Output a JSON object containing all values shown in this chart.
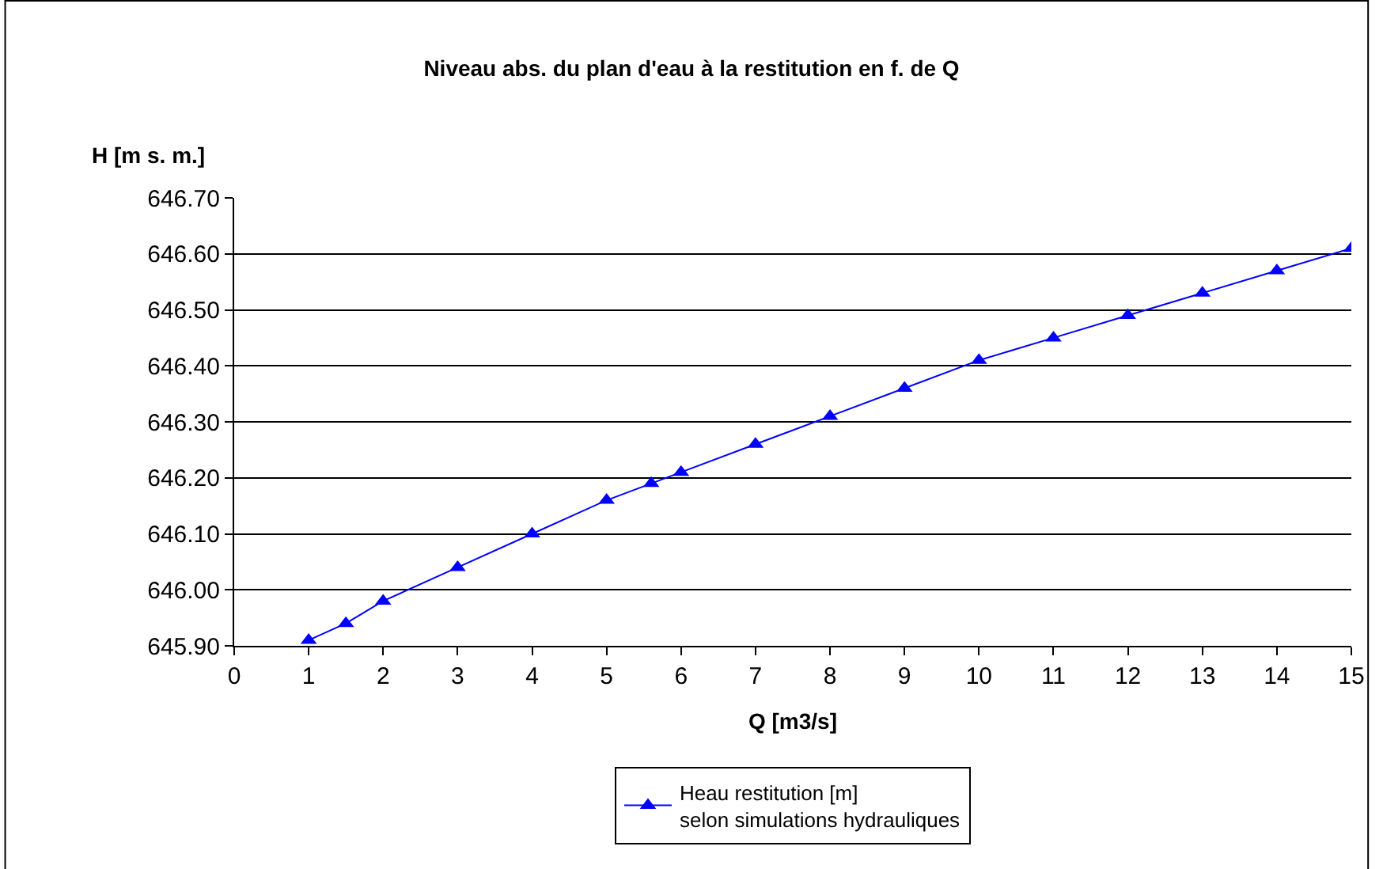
{
  "chart_data": {
    "type": "line",
    "title": "Niveau abs. du plan d'eau à la restitution en f. de Q",
    "xlabel": "Q [m3/s]",
    "ylabel": "H [m s. m.]",
    "x": [
      1,
      1.5,
      2,
      3,
      4,
      5,
      5.6,
      6,
      7,
      8,
      9,
      10,
      11,
      12,
      13,
      14,
      15
    ],
    "series": [
      {
        "name": "Heau restitution [m]\nselon simulations hydrauliques",
        "color": "#0000ff",
        "values": [
          645.91,
          645.94,
          645.98,
          646.04,
          646.1,
          646.16,
          646.19,
          646.21,
          646.26,
          646.31,
          646.36,
          646.41,
          646.45,
          646.49,
          646.53,
          646.57,
          646.61
        ]
      }
    ],
    "xlim": [
      0,
      15
    ],
    "xticks": [
      0,
      1,
      2,
      3,
      4,
      5,
      6,
      7,
      8,
      9,
      10,
      11,
      12,
      13,
      14,
      15
    ],
    "ylim": [
      645.9,
      646.7
    ],
    "yticks": [
      {
        "value": 645.9,
        "label": "645.90"
      },
      {
        "value": 646.0,
        "label": "646.00"
      },
      {
        "value": 646.1,
        "label": "646.10"
      },
      {
        "value": 646.2,
        "label": "646.20"
      },
      {
        "value": 646.3,
        "label": "646.30"
      },
      {
        "value": 646.4,
        "label": "646.40"
      },
      {
        "value": 646.5,
        "label": "646.50"
      },
      {
        "value": 646.6,
        "label": "646.60"
      },
      {
        "value": 646.7,
        "label": "646.70"
      }
    ],
    "grid": "y",
    "legend": "bottom",
    "marker": "triangle",
    "line_style": "solid"
  }
}
